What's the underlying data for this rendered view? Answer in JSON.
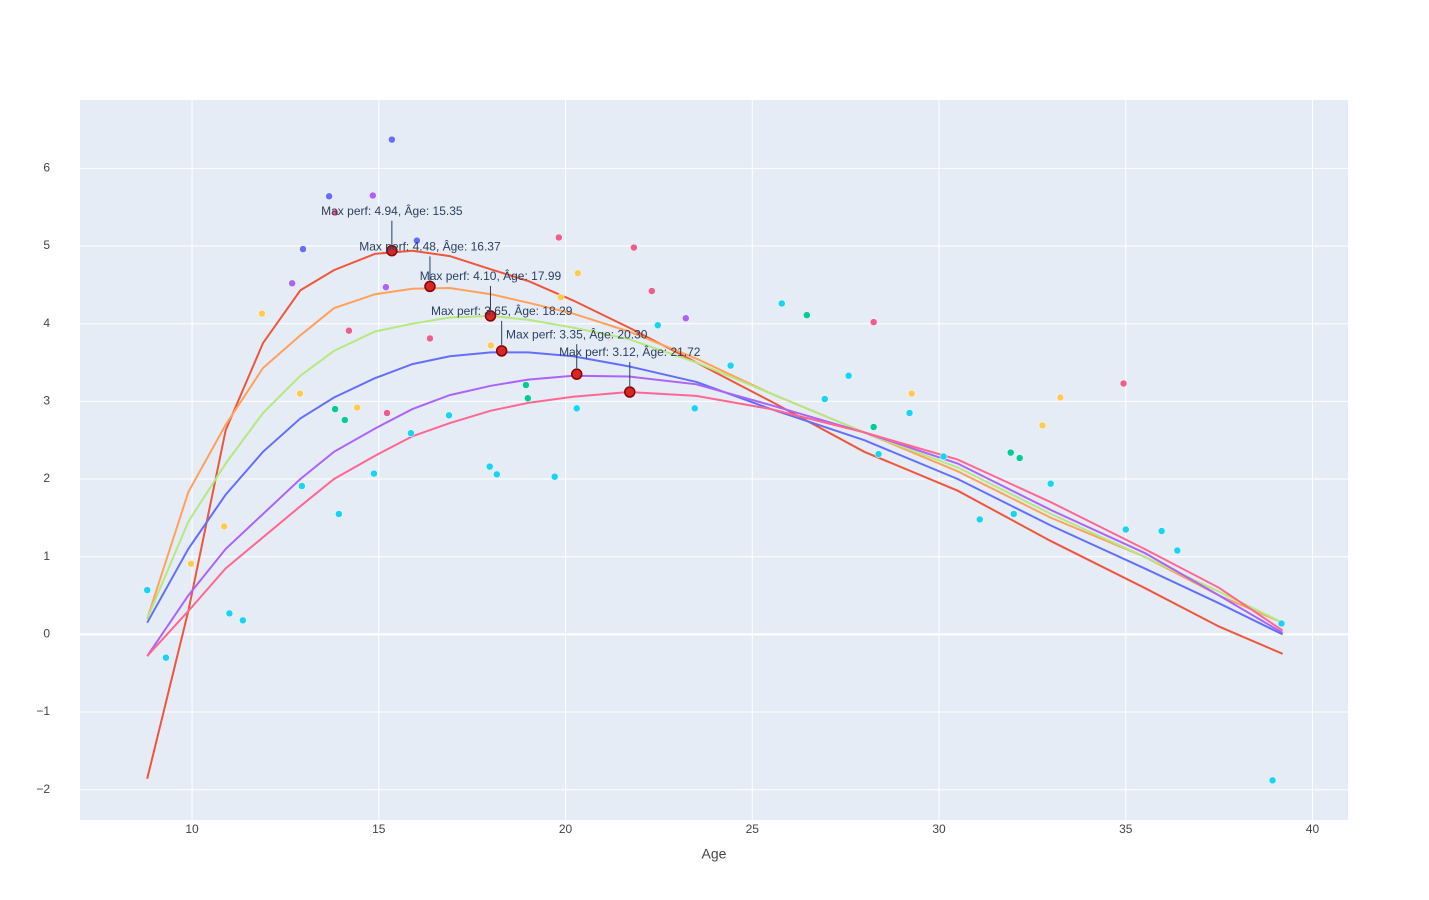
{
  "chart_data": {
    "type": "line",
    "x_label": "Age",
    "xlim": [
      7.0,
      40.95
    ],
    "ylim": [
      -2.39,
      6.88
    ],
    "xticks": [
      10,
      15,
      20,
      25,
      30,
      35,
      40
    ],
    "yticks": [
      {
        "value": -2,
        "label": "−2"
      },
      {
        "value": -1,
        "label": "−1"
      },
      0,
      1,
      2,
      3,
      4,
      5,
      6
    ],
    "grid": true,
    "background": "#e5ecf6",
    "x": [
      8.8,
      9.9,
      10.9,
      11.9,
      12.9,
      13.8,
      14.9,
      15.9,
      16.9,
      18,
      19,
      20.2,
      21.7,
      23.5,
      25.5,
      28,
      30.5,
      33,
      35.5,
      37.5,
      39.2
    ],
    "series": [
      {
        "color": "#EF553B",
        "values": [
          -1.86,
          0.3,
          2.63,
          3.75,
          4.43,
          4.69,
          4.9,
          4.94,
          4.87,
          4.7,
          4.55,
          4.3,
          3.95,
          3.5,
          3.0,
          2.35,
          1.85,
          1.2,
          0.6,
          0.1,
          -0.25
        ]
      },
      {
        "color": "#FFA15A",
        "values": [
          0.2,
          1.83,
          2.7,
          3.43,
          3.85,
          4.2,
          4.38,
          4.45,
          4.46,
          4.38,
          4.27,
          4.13,
          3.9,
          3.55,
          3.1,
          2.6,
          2.1,
          1.5,
          1.0,
          0.5,
          0.15
        ]
      },
      {
        "color": "#B6E880",
        "values": [
          0.2,
          1.45,
          2.2,
          2.85,
          3.33,
          3.65,
          3.9,
          4.0,
          4.08,
          4.1,
          4.05,
          3.95,
          3.8,
          3.5,
          3.1,
          2.6,
          2.15,
          1.55,
          1.0,
          0.55,
          0.15
        ]
      },
      {
        "color": "#636EFA",
        "values": [
          0.15,
          1.1,
          1.8,
          2.35,
          2.78,
          3.05,
          3.3,
          3.48,
          3.58,
          3.63,
          3.63,
          3.58,
          3.45,
          3.25,
          2.9,
          2.5,
          2.0,
          1.4,
          0.85,
          0.4,
          0.0
        ]
      },
      {
        "color": "#AB63FA",
        "values": [
          -0.28,
          0.5,
          1.1,
          1.55,
          2.0,
          2.35,
          2.65,
          2.9,
          3.08,
          3.2,
          3.28,
          3.33,
          3.32,
          3.22,
          2.95,
          2.6,
          2.2,
          1.6,
          1.05,
          0.5,
          0.02
        ]
      },
      {
        "color": "#FF6692",
        "values": [
          -0.28,
          0.3,
          0.85,
          1.25,
          1.65,
          2.0,
          2.3,
          2.55,
          2.72,
          2.88,
          2.98,
          3.06,
          3.12,
          3.07,
          2.9,
          2.6,
          2.25,
          1.7,
          1.1,
          0.6,
          0.05
        ]
      }
    ],
    "points": [
      {
        "color": "#19D3F3",
        "x": [
          8.8,
          9.3,
          11.0,
          11.36,
          12.94,
          13.93,
          14.87,
          15.86,
          16.88,
          17.97,
          18.16,
          19.71,
          20.3,
          22.47,
          23.46,
          24.42,
          25.79,
          26.94,
          27.58,
          28.38,
          29.21,
          30.12,
          31.09,
          32.0,
          32.99,
          35.0,
          35.96,
          36.38,
          38.93,
          39.17
        ],
        "y": [
          0.57,
          -0.3,
          0.27,
          0.18,
          1.91,
          1.55,
          2.07,
          2.59,
          2.82,
          2.16,
          2.06,
          2.03,
          2.91,
          3.98,
          2.91,
          3.46,
          4.26,
          3.03,
          3.33,
          2.32,
          2.85,
          2.29,
          1.48,
          1.55,
          1.94,
          1.35,
          1.33,
          1.08,
          -1.88,
          0.14
        ]
      },
      {
        "color": "#00CC96",
        "x": [
          13.83,
          14.09,
          18.94,
          18.99,
          26.46,
          28.25,
          31.92,
          32.16
        ],
        "y": [
          2.9,
          2.76,
          3.21,
          3.04,
          4.11,
          2.67,
          2.34,
          2.27
        ]
      },
      {
        "color": "#AB63FA",
        "x": [
          12.68,
          14.84,
          15.19,
          23.22
        ],
        "y": [
          4.52,
          5.65,
          4.47,
          4.07
        ]
      },
      {
        "color": "#636EFA",
        "x": [
          12.97,
          13.67,
          15.35,
          16.02
        ],
        "y": [
          4.96,
          5.64,
          6.37,
          5.07
        ]
      },
      {
        "color": "#EF5D8D",
        "x": [
          13.83,
          14.2,
          15.22,
          16.37,
          19.82,
          21.83,
          22.31,
          28.25,
          34.94
        ],
        "y": [
          5.43,
          3.91,
          2.85,
          3.81,
          5.11,
          4.98,
          4.42,
          4.02,
          3.23
        ]
      },
      {
        "color": "#FECB52",
        "x": [
          9.97,
          10.86,
          11.87,
          12.89,
          14.42,
          18.0,
          19.87,
          20.33,
          29.27,
          32.77,
          33.25
        ],
        "y": [
          0.91,
          1.39,
          4.13,
          3.1,
          2.92,
          3.72,
          4.34,
          4.65,
          3.1,
          2.69,
          3.05
        ]
      }
    ],
    "max_marker_color": "#D62728",
    "annotations": [
      {
        "x": 15.35,
        "y": 4.94,
        "text": "Max perf: 4.94, Âge: 15.35"
      },
      {
        "x": 16.37,
        "y": 4.48,
        "text": "Max perf: 4.48, Âge: 16.37"
      },
      {
        "x": 17.99,
        "y": 4.1,
        "text": "Max perf: 4.10, Âge: 17.99"
      },
      {
        "x": 18.29,
        "y": 3.65,
        "text": "Max perf: 3.65, Âge: 18.29"
      },
      {
        "x": 20.3,
        "y": 3.35,
        "text": "Max perf: 3.35, Âge: 20.30"
      },
      {
        "x": 21.72,
        "y": 3.12,
        "text": "Max perf: 3.12, Âge: 21.72"
      }
    ]
  }
}
